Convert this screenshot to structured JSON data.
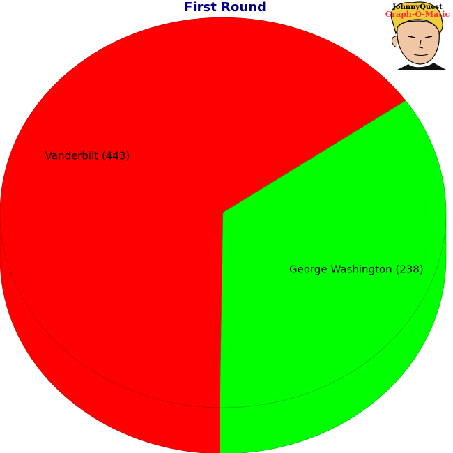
{
  "chart_data": {
    "type": "pie",
    "title": "First Round",
    "slices": [
      {
        "name": "Vanderbilt",
        "value": 443,
        "label": "Vanderbilt (443)",
        "color": "#ff0000"
      },
      {
        "name": "George Washington",
        "value": 238,
        "label": "George Washington (238)",
        "color": "#00ff00"
      }
    ],
    "style": "3d-tilted",
    "title_color": "#000080",
    "label_position": "inside"
  },
  "logo": {
    "line1": "JohnnyQuest",
    "line2": "Graph-O-Matic",
    "line1_color": "#000000",
    "line2_color": "#ff3333"
  }
}
